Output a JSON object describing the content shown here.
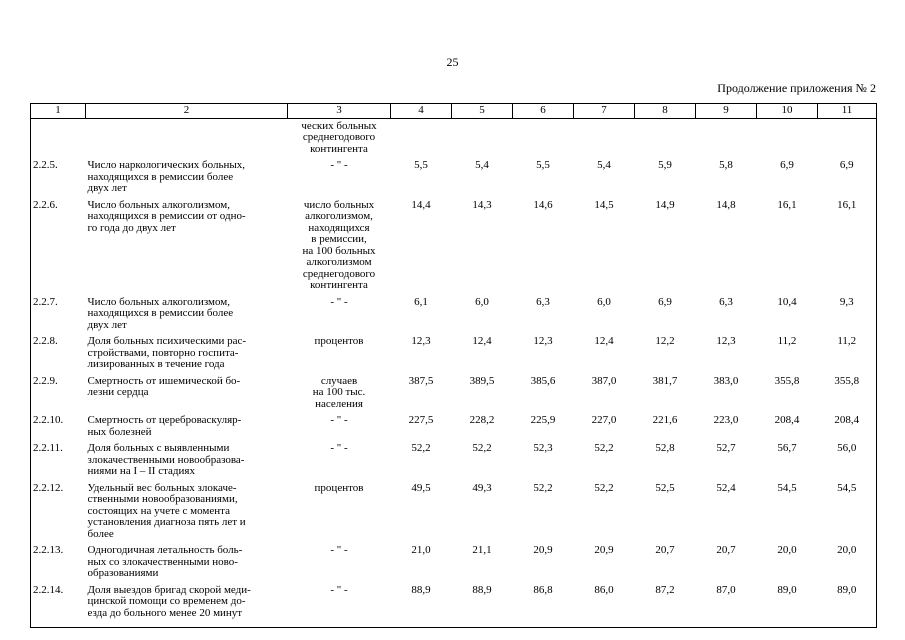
{
  "page": {
    "number": "25",
    "caption": "Продолжение приложения № 2"
  },
  "table": {
    "column_headers": [
      "1",
      "2",
      "3",
      "4",
      "5",
      "6",
      "7",
      "8",
      "9",
      "10",
      "11"
    ],
    "rows": [
      {
        "num": "",
        "name_lines": [],
        "unit_lines": [
          "ческих больных",
          "среднегодового",
          "контингента"
        ],
        "values": [
          "",
          "",
          "",
          "",
          "",
          "",
          "",
          ""
        ]
      },
      {
        "num": "2.2.5.",
        "name_lines": [
          "Число наркологических больных,",
          "находящихся в ремиссии более",
          "двух лет"
        ],
        "unit_lines": [
          "- \" -"
        ],
        "values": [
          "5,5",
          "5,4",
          "5,5",
          "5,4",
          "5,9",
          "5,8",
          "6,9",
          "6,9"
        ]
      },
      {
        "num": "2.2.6.",
        "name_lines": [
          "Число больных алкоголизмом,",
          "находящихся в ремиссии от одно-",
          "го года до двух лет"
        ],
        "unit_lines": [
          "число больных",
          "алкоголизмом,",
          "находящихся",
          "в ремиссии,",
          "на 100 больных",
          "алкоголизмом",
          "среднегодового",
          "контингента"
        ],
        "values": [
          "14,4",
          "14,3",
          "14,6",
          "14,5",
          "14,9",
          "14,8",
          "16,1",
          "16,1"
        ]
      },
      {
        "num": "2.2.7.",
        "name_lines": [
          "Число больных алкоголизмом,",
          "находящихся в ремиссии более",
          "двух лет"
        ],
        "unit_lines": [
          "- \" -"
        ],
        "values": [
          "6,1",
          "6,0",
          "6,3",
          "6,0",
          "6,9",
          "6,3",
          "10,4",
          "9,3"
        ]
      },
      {
        "num": "2.2.8.",
        "name_lines": [
          "Доля больных психическими рас-",
          "стройствами, повторно госпита-",
          "лизированных в течение года"
        ],
        "unit_lines": [
          "процентов"
        ],
        "values": [
          "12,3",
          "12,4",
          "12,3",
          "12,4",
          "12,2",
          "12,3",
          "11,2",
          "11,2"
        ]
      },
      {
        "num": "2.2.9.",
        "name_lines": [
          "Смертность от ишемической бо-",
          "лезни сердца"
        ],
        "unit_lines": [
          "случаев",
          "на 100 тыс.",
          "населения"
        ],
        "values": [
          "387,5",
          "389,5",
          "385,6",
          "387,0",
          "381,7",
          "383,0",
          "355,8",
          "355,8"
        ]
      },
      {
        "num": "2.2.10.",
        "name_lines": [
          "Смертность от цереброваскуляр-",
          "ных болезней"
        ],
        "unit_lines": [
          "- \" -"
        ],
        "values": [
          "227,5",
          "228,2",
          "225,9",
          "227,0",
          "221,6",
          "223,0",
          "208,4",
          "208,4"
        ]
      },
      {
        "num": "2.2.11.",
        "name_lines": [
          "Доля больных с выявленными",
          "злокачественными новообразова-",
          "ниями на I – II стадиях"
        ],
        "unit_lines": [
          "- \" -"
        ],
        "values": [
          "52,2",
          "52,2",
          "52,3",
          "52,2",
          "52,8",
          "52,7",
          "56,7",
          "56,0"
        ]
      },
      {
        "num": "2.2.12.",
        "name_lines": [
          "Удельный вес больных злокаче-",
          "ственными новообразованиями,",
          "состоящих на учете с момента",
          "установления диагноза пять лет и",
          "более"
        ],
        "unit_lines": [
          "процентов"
        ],
        "values": [
          "49,5",
          "49,3",
          "52,2",
          "52,2",
          "52,5",
          "52,4",
          "54,5",
          "54,5"
        ]
      },
      {
        "num": "2.2.13.",
        "name_lines": [
          "Одногодичная летальность боль-",
          "ных со злокачественными ново-",
          "образованиями"
        ],
        "unit_lines": [
          "- \" -"
        ],
        "values": [
          "21,0",
          "21,1",
          "20,9",
          "20,9",
          "20,7",
          "20,7",
          "20,0",
          "20,0"
        ]
      },
      {
        "num": "2.2.14.",
        "name_lines": [
          "Доля выездов бригад скорой меди-",
          "цинской помощи со временем до-",
          "езда до больного менее 20 минут"
        ],
        "unit_lines": [
          "- \" -"
        ],
        "values": [
          "88,9",
          "88,9",
          "86,8",
          "86,0",
          "87,2",
          "87,0",
          "89,0",
          "89,0"
        ]
      }
    ]
  }
}
